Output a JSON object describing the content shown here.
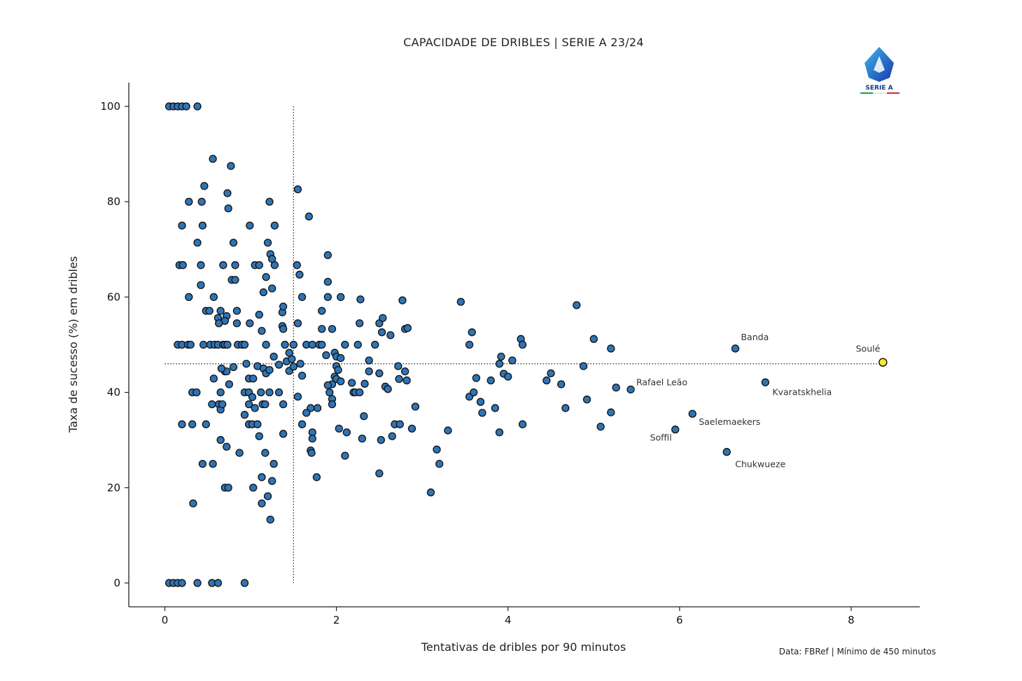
{
  "chart_data": {
    "type": "scatter",
    "title": "CAPACIDADE DE DRIBLES | SERIE A 23/24",
    "xlabel": "Tentativas de dribles por 90 minutos",
    "ylabel": "Taxa de sucesso (%) em dribles",
    "source": "Data: FBRef | Mínimo de 450 minutos",
    "xlim": [
      -0.42,
      8.8
    ],
    "ylim": [
      -5,
      105
    ],
    "xticks": [
      0,
      2,
      4,
      6,
      8
    ],
    "yticks": [
      0,
      20,
      40,
      60,
      80,
      100
    ],
    "reference_lines": {
      "x": 1.5,
      "y": 46
    },
    "colors": {
      "points": "#2f74b5",
      "highlight": "#f2ea2a",
      "edge": "#111111"
    },
    "logo_text": "SERIE A",
    "annotations": [
      {
        "label": "Banda",
        "x": 6.65,
        "y": 49.2
      },
      {
        "label": "Soulé",
        "x": 8.37,
        "y": 46.3
      },
      {
        "label": "Rafael Leão",
        "x": 5.43,
        "y": 40.6
      },
      {
        "label": "Kvaratskhelia",
        "x": 7.0,
        "y": 42.1
      },
      {
        "label": "Saelemaekers",
        "x": 6.15,
        "y": 35.5
      },
      {
        "label": "Soffil",
        "x": 5.95,
        "y": 32.2
      },
      {
        "label": "Chukwueze",
        "x": 6.55,
        "y": 27.5
      }
    ],
    "highlight": {
      "label": "Soulé",
      "x": 8.37,
      "y": 46.3
    },
    "points": [
      [
        0.05,
        100
      ],
      [
        0.1,
        100
      ],
      [
        0.15,
        100
      ],
      [
        0.2,
        100
      ],
      [
        0.25,
        100
      ],
      [
        0.38,
        100
      ],
      [
        0.05,
        0
      ],
      [
        0.1,
        0
      ],
      [
        0.15,
        0
      ],
      [
        0.2,
        0
      ],
      [
        0.38,
        0
      ],
      [
        0.55,
        0
      ],
      [
        0.62,
        0
      ],
      [
        0.93,
        0
      ],
      [
        0.56,
        89
      ],
      [
        0.77,
        87.5
      ],
      [
        0.46,
        83.3
      ],
      [
        0.73,
        81.8
      ],
      [
        0.28,
        80
      ],
      [
        0.43,
        80
      ],
      [
        0.74,
        78.6
      ],
      [
        1.22,
        80
      ],
      [
        0.2,
        75
      ],
      [
        0.44,
        75
      ],
      [
        0.99,
        75
      ],
      [
        1.28,
        75
      ],
      [
        0.38,
        71.4
      ],
      [
        0.8,
        71.4
      ],
      [
        1.2,
        71.4
      ],
      [
        0.17,
        66.7
      ],
      [
        0.21,
        66.7
      ],
      [
        0.42,
        66.7
      ],
      [
        0.68,
        66.7
      ],
      [
        0.82,
        66.7
      ],
      [
        1.05,
        66.7
      ],
      [
        1.1,
        66.7
      ],
      [
        1.28,
        66.7
      ],
      [
        1.23,
        69
      ],
      [
        1.25,
        68
      ],
      [
        0.78,
        63.6
      ],
      [
        0.82,
        63.6
      ],
      [
        1.18,
        64.2
      ],
      [
        1.25,
        61.8
      ],
      [
        1.15,
        61
      ],
      [
        0.42,
        62.5
      ],
      [
        0.28,
        60
      ],
      [
        0.57,
        60
      ],
      [
        0.48,
        57.1
      ],
      [
        0.52,
        57.1
      ],
      [
        0.65,
        57.1
      ],
      [
        0.72,
        56
      ],
      [
        0.84,
        57.1
      ],
      [
        0.62,
        55.6
      ],
      [
        0.7,
        55
      ],
      [
        0.63,
        54.5
      ],
      [
        0.84,
        54.5
      ],
      [
        0.99,
        54.5
      ],
      [
        1.1,
        56.3
      ],
      [
        1.37,
        56.8
      ],
      [
        1.38,
        58
      ],
      [
        1.37,
        53.9
      ],
      [
        1.13,
        52.9
      ],
      [
        1.38,
        53.3
      ],
      [
        0.15,
        50
      ],
      [
        0.2,
        50
      ],
      [
        0.27,
        50
      ],
      [
        0.3,
        50
      ],
      [
        0.45,
        50
      ],
      [
        0.53,
        50
      ],
      [
        0.58,
        50
      ],
      [
        0.62,
        50
      ],
      [
        0.68,
        50
      ],
      [
        0.7,
        50
      ],
      [
        0.73,
        50
      ],
      [
        0.85,
        50
      ],
      [
        0.9,
        50
      ],
      [
        0.93,
        50
      ],
      [
        1.18,
        50
      ],
      [
        1.4,
        50
      ],
      [
        1.5,
        50
      ],
      [
        1.65,
        50
      ],
      [
        1.72,
        50
      ],
      [
        1.8,
        50
      ],
      [
        1.83,
        50
      ],
      [
        0.7,
        44.4
      ],
      [
        0.72,
        44.4
      ],
      [
        0.66,
        45
      ],
      [
        0.95,
        46
      ],
      [
        1.08,
        45.5
      ],
      [
        1.15,
        45
      ],
      [
        1.18,
        44
      ],
      [
        1.22,
        44.7
      ],
      [
        1.27,
        47.5
      ],
      [
        1.33,
        45.8
      ],
      [
        1.42,
        46.5
      ],
      [
        1.45,
        44.5
      ],
      [
        1.48,
        47
      ],
      [
        1.58,
        46
      ],
      [
        1.6,
        43.5
      ],
      [
        1.45,
        48.3
      ],
      [
        1.5,
        45.4
      ],
      [
        0.8,
        45.3
      ],
      [
        0.57,
        42.9
      ],
      [
        0.75,
        41.7
      ],
      [
        0.98,
        42.9
      ],
      [
        1.03,
        42.9
      ],
      [
        0.93,
        40
      ],
      [
        0.65,
        40
      ],
      [
        0.32,
        40
      ],
      [
        0.37,
        40
      ],
      [
        0.98,
        40
      ],
      [
        1.12,
        40
      ],
      [
        1.02,
        39
      ],
      [
        1.22,
        40
      ],
      [
        1.33,
        40
      ],
      [
        0.55,
        37.5
      ],
      [
        0.63,
        37.5
      ],
      [
        0.65,
        36.4
      ],
      [
        0.67,
        37.5
      ],
      [
        0.98,
        37.5
      ],
      [
        1.05,
        36.7
      ],
      [
        1.14,
        37.5
      ],
      [
        1.17,
        37.5
      ],
      [
        1.38,
        37.5
      ],
      [
        0.93,
        35.3
      ],
      [
        0.2,
        33.3
      ],
      [
        0.32,
        33.3
      ],
      [
        0.48,
        33.3
      ],
      [
        0.98,
        33.3
      ],
      [
        1.02,
        33.3
      ],
      [
        1.08,
        33.3
      ],
      [
        1.38,
        31.3
      ],
      [
        0.65,
        30
      ],
      [
        0.72,
        28.6
      ],
      [
        0.87,
        27.3
      ],
      [
        1.1,
        30.8
      ],
      [
        1.17,
        27.3
      ],
      [
        0.44,
        25
      ],
      [
        0.56,
        25
      ],
      [
        1.27,
        25
      ],
      [
        1.13,
        22.2
      ],
      [
        1.25,
        21.4
      ],
      [
        1.03,
        20
      ],
      [
        0.7,
        20
      ],
      [
        0.74,
        20
      ],
      [
        1.13,
        16.7
      ],
      [
        1.2,
        18.2
      ],
      [
        0.33,
        16.7
      ],
      [
        1.23,
        13.3
      ],
      [
        1.55,
        82.6
      ],
      [
        1.68,
        76.9
      ],
      [
        1.9,
        68.8
      ],
      [
        1.54,
        66.7
      ],
      [
        1.57,
        64.7
      ],
      [
        1.9,
        63.2
      ],
      [
        1.6,
        60
      ],
      [
        1.9,
        60
      ],
      [
        2.05,
        60
      ],
      [
        2.28,
        59.5
      ],
      [
        1.83,
        57.1
      ],
      [
        1.55,
        54.5
      ],
      [
        1.83,
        53.3
      ],
      [
        1.95,
        53.3
      ],
      [
        2.27,
        54.5
      ],
      [
        1.98,
        48.3
      ],
      [
        2.0,
        47.5
      ],
      [
        2.05,
        47.2
      ],
      [
        2.0,
        45.5
      ],
      [
        2.02,
        44.7
      ],
      [
        1.88,
        47.8
      ],
      [
        1.98,
        43.3
      ],
      [
        2.0,
        42.8
      ],
      [
        2.05,
        42.3
      ],
      [
        1.95,
        41.7
      ],
      [
        1.9,
        41.5
      ],
      [
        1.92,
        40
      ],
      [
        1.95,
        38.6
      ],
      [
        1.55,
        39.1
      ],
      [
        2.1,
        50
      ],
      [
        2.25,
        50
      ],
      [
        2.18,
        42
      ],
      [
        2.2,
        40
      ],
      [
        2.22,
        40
      ],
      [
        2.27,
        40
      ],
      [
        2.33,
        41.8
      ],
      [
        1.95,
        37.5
      ],
      [
        1.7,
        36.7
      ],
      [
        1.78,
        36.7
      ],
      [
        1.65,
        35.7
      ],
      [
        1.6,
        33.3
      ],
      [
        1.72,
        31.6
      ],
      [
        1.72,
        30.3
      ],
      [
        1.7,
        27.8
      ],
      [
        1.71,
        27.3
      ],
      [
        1.77,
        22.2
      ],
      [
        2.03,
        32.4
      ],
      [
        2.12,
        31.6
      ],
      [
        2.3,
        30.3
      ],
      [
        2.32,
        35
      ],
      [
        2.1,
        26.7
      ],
      [
        2.38,
        46.7
      ],
      [
        2.38,
        44.4
      ],
      [
        2.45,
        50
      ],
      [
        2.5,
        54.5
      ],
      [
        2.53,
        52.6
      ],
      [
        2.54,
        55.6
      ],
      [
        2.63,
        52
      ],
      [
        2.77,
        59.3
      ],
      [
        2.8,
        53.3
      ],
      [
        2.83,
        53.5
      ],
      [
        2.72,
        45.5
      ],
      [
        2.8,
        44.4
      ],
      [
        2.73,
        42.8
      ],
      [
        2.82,
        42.5
      ],
      [
        2.5,
        44
      ],
      [
        2.57,
        41.2
      ],
      [
        2.6,
        40.7
      ],
      [
        2.92,
        37
      ],
      [
        2.68,
        33.3
      ],
      [
        2.74,
        33.3
      ],
      [
        2.88,
        32.4
      ],
      [
        2.52,
        30
      ],
      [
        2.65,
        30.8
      ],
      [
        2.5,
        23
      ],
      [
        3.1,
        19
      ],
      [
        3.17,
        28
      ],
      [
        3.2,
        25
      ],
      [
        3.3,
        32
      ],
      [
        3.45,
        59
      ],
      [
        3.58,
        52.6
      ],
      [
        3.55,
        50
      ],
      [
        3.63,
        43
      ],
      [
        3.55,
        39.1
      ],
      [
        3.6,
        40
      ],
      [
        3.68,
        38
      ],
      [
        3.7,
        35.7
      ],
      [
        3.8,
        42.5
      ],
      [
        3.85,
        36.7
      ],
      [
        3.9,
        31.6
      ],
      [
        3.9,
        46
      ],
      [
        3.92,
        47.5
      ],
      [
        3.95,
        43.9
      ],
      [
        4.0,
        43.3
      ],
      [
        4.05,
        46.7
      ],
      [
        4.15,
        51.2
      ],
      [
        4.17,
        50
      ],
      [
        4.17,
        33.3
      ],
      [
        4.45,
        42.5
      ],
      [
        4.5,
        44
      ],
      [
        4.62,
        41.7
      ],
      [
        4.67,
        36.7
      ],
      [
        4.8,
        58.3
      ],
      [
        4.88,
        45.5
      ],
      [
        4.92,
        38.5
      ],
      [
        5.0,
        51.2
      ],
      [
        5.08,
        32.8
      ],
      [
        5.2,
        49.2
      ],
      [
        5.2,
        35.8
      ],
      [
        5.26,
        41
      ]
    ]
  }
}
